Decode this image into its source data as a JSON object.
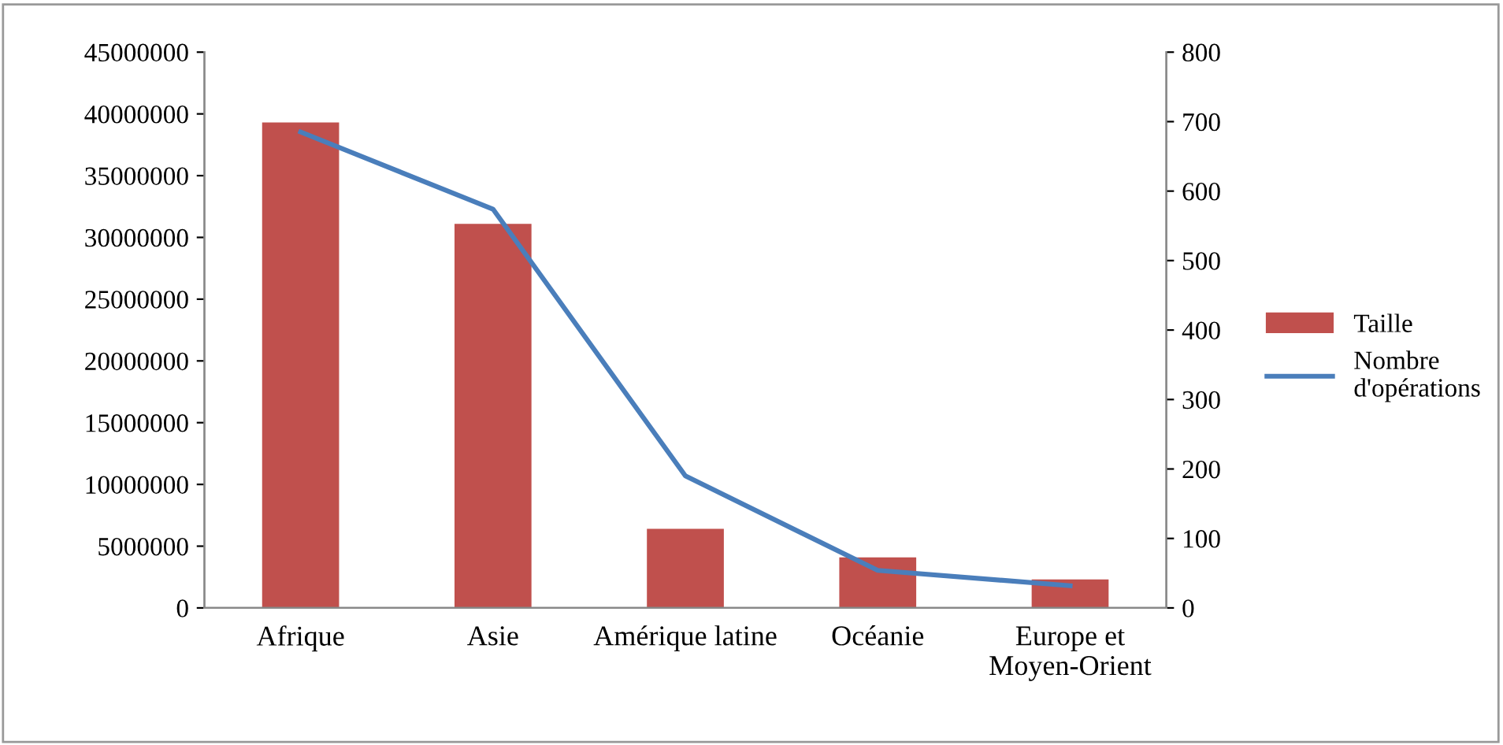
{
  "chart_data": {
    "type": "bar",
    "categories": [
      "Afrique",
      "Asie",
      "Amérique latine",
      "Océanie",
      "Europe et\nMoyen-Orient"
    ],
    "series": [
      {
        "name": "Taille",
        "color": "#c0504d",
        "values": [
          39300000,
          31100000,
          6400000,
          4100000,
          2300000
        ]
      },
      {
        "name": "Nombre\nd'opérations",
        "type": "line",
        "axis": "y2",
        "color": "#4a7ebb",
        "values": [
          685,
          574,
          190,
          54,
          32
        ]
      }
    ],
    "ylim": [
      0,
      45000000
    ],
    "yticks": [
      0,
      5000000,
      10000000,
      15000000,
      20000000,
      25000000,
      30000000,
      35000000,
      40000000,
      45000000
    ],
    "y2lim": [
      0,
      800
    ],
    "y2ticks": [
      0,
      100,
      200,
      300,
      400,
      500,
      600,
      700,
      800
    ],
    "grid": false,
    "legend": "right",
    "marker": "none",
    "line_style": "solid"
  }
}
